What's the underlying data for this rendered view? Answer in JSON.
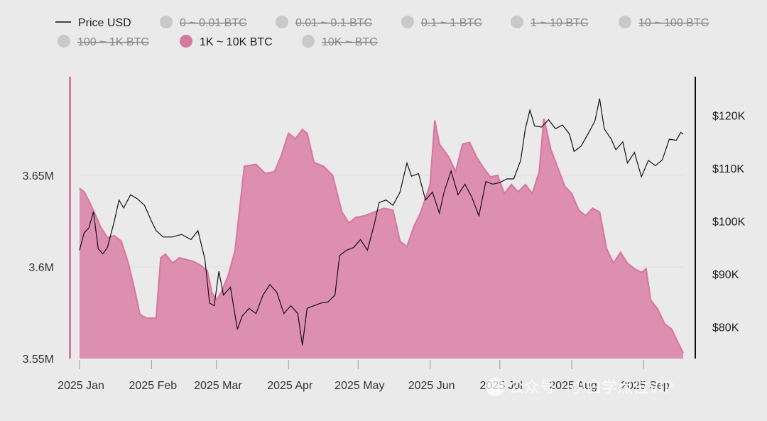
{
  "chart_data": {
    "type": "area",
    "legend": [
      {
        "label": "Price USD",
        "kind": "line",
        "active": true
      },
      {
        "label": "0 ~ 0.01 BTC",
        "kind": "dot",
        "active": false
      },
      {
        "label": "0.01 ~ 0.1 BTC",
        "kind": "dot",
        "active": false
      },
      {
        "label": "0.1 ~ 1 BTC",
        "kind": "dot",
        "active": false
      },
      {
        "label": "1 ~ 10 BTC",
        "kind": "dot",
        "active": false
      },
      {
        "label": "10 ~ 100 BTC",
        "kind": "dot",
        "active": false
      },
      {
        "label": "100 ~ 1K BTC",
        "kind": "dot",
        "active": false
      },
      {
        "label": "1K ~ 10K BTC",
        "kind": "dot",
        "active": true
      },
      {
        "label": "10K ~ BTC",
        "kind": "dot",
        "active": false
      }
    ],
    "x_ticks": [
      "2025 Jan",
      "2025 Feb",
      "2025 Mar",
      "2025 Apr",
      "2025 May",
      "2025 Jun",
      "2025 Jul",
      "2025 Aug",
      "2025 Sep"
    ],
    "x_tick_dates": [
      "2025-01-01",
      "2025-02-01",
      "2025-03-01",
      "2025-04-01",
      "2025-05-01",
      "2025-06-01",
      "2025-07-01",
      "2025-08-01",
      "2025-09-01"
    ],
    "y_left": {
      "ticks": [
        "3.55M",
        "3.6M",
        "3.65M"
      ],
      "tick_values": [
        3550000,
        3600000,
        3650000
      ],
      "range": [
        3550000,
        3700000
      ]
    },
    "y_right": {
      "ticks": [
        "$80K",
        "$90K",
        "$100K",
        "$110K",
        "$120K"
      ],
      "tick_values": [
        80000,
        90000,
        100000,
        110000,
        120000
      ],
      "range": [
        74000,
        126000
      ]
    },
    "series": [
      {
        "name": "1K ~ 10K BTC",
        "axis": "left",
        "color": "#d9789e",
        "points": [
          [
            "2025-01-01",
            3643000
          ],
          [
            "2025-01-03",
            3641000
          ],
          [
            "2025-01-05",
            3636000
          ],
          [
            "2025-01-08",
            3628000
          ],
          [
            "2025-01-10",
            3622000
          ],
          [
            "2025-01-13",
            3616000
          ],
          [
            "2025-01-16",
            3617000
          ],
          [
            "2025-01-19",
            3614000
          ],
          [
            "2025-01-22",
            3602000
          ],
          [
            "2025-01-25",
            3586000
          ],
          [
            "2025-01-27",
            3574000
          ],
          [
            "2025-01-30",
            3572000
          ],
          [
            "2025-02-03",
            3572000
          ],
          [
            "2025-02-05",
            3605000
          ],
          [
            "2025-02-07",
            3607000
          ],
          [
            "2025-02-10",
            3602000
          ],
          [
            "2025-02-13",
            3605000
          ],
          [
            "2025-02-16",
            3604000
          ],
          [
            "2025-02-19",
            3603000
          ],
          [
            "2025-02-22",
            3601000
          ],
          [
            "2025-02-25",
            3598000
          ],
          [
            "2025-02-27",
            3586000
          ],
          [
            "2025-03-01",
            3582000
          ],
          [
            "2025-03-03",
            3586000
          ],
          [
            "2025-03-06",
            3595000
          ],
          [
            "2025-03-09",
            3609000
          ],
          [
            "2025-03-13",
            3655000
          ],
          [
            "2025-03-18",
            3656000
          ],
          [
            "2025-03-22",
            3651000
          ],
          [
            "2025-03-26",
            3652000
          ],
          [
            "2025-03-29",
            3661000
          ],
          [
            "2025-04-01",
            3673000
          ],
          [
            "2025-04-04",
            3670000
          ],
          [
            "2025-04-07",
            3675000
          ],
          [
            "2025-04-09",
            3673000
          ],
          [
            "2025-04-12",
            3657000
          ],
          [
            "2025-04-16",
            3655000
          ],
          [
            "2025-04-20",
            3650000
          ],
          [
            "2025-04-24",
            3630000
          ],
          [
            "2025-04-27",
            3624000
          ],
          [
            "2025-04-30",
            3627000
          ],
          [
            "2025-05-04",
            3628000
          ],
          [
            "2025-05-08",
            3630000
          ],
          [
            "2025-05-12",
            3632000
          ],
          [
            "2025-05-16",
            3631000
          ],
          [
            "2025-05-19",
            3614000
          ],
          [
            "2025-05-22",
            3611000
          ],
          [
            "2025-05-25",
            3622000
          ],
          [
            "2025-05-28",
            3630000
          ],
          [
            "2025-06-01",
            3645000
          ],
          [
            "2025-06-03",
            3680000
          ],
          [
            "2025-06-05",
            3667000
          ],
          [
            "2025-06-09",
            3660000
          ],
          [
            "2025-06-12",
            3652000
          ],
          [
            "2025-06-15",
            3667000
          ],
          [
            "2025-06-18",
            3668000
          ],
          [
            "2025-06-21",
            3660000
          ],
          [
            "2025-06-24",
            3654000
          ],
          [
            "2025-06-27",
            3649000
          ],
          [
            "2025-06-30",
            3650000
          ],
          [
            "2025-07-03",
            3640000
          ],
          [
            "2025-07-06",
            3645000
          ],
          [
            "2025-07-09",
            3641000
          ],
          [
            "2025-07-12",
            3645000
          ],
          [
            "2025-07-15",
            3640000
          ],
          [
            "2025-07-18",
            3652000
          ],
          [
            "2025-07-20",
            3681000
          ],
          [
            "2025-07-23",
            3664000
          ],
          [
            "2025-07-26",
            3654000
          ],
          [
            "2025-07-29",
            3644000
          ],
          [
            "2025-08-01",
            3640000
          ],
          [
            "2025-08-04",
            3631000
          ],
          [
            "2025-08-07",
            3628000
          ],
          [
            "2025-08-10",
            3632000
          ],
          [
            "2025-08-13",
            3630000
          ],
          [
            "2025-08-16",
            3610000
          ],
          [
            "2025-08-19",
            3602000
          ],
          [
            "2025-08-22",
            3608000
          ],
          [
            "2025-08-25",
            3602000
          ],
          [
            "2025-08-28",
            3599000
          ],
          [
            "2025-08-31",
            3597000
          ],
          [
            "2025-09-02",
            3599000
          ],
          [
            "2025-09-04",
            3582000
          ],
          [
            "2025-09-07",
            3577000
          ],
          [
            "2025-09-10",
            3569000
          ],
          [
            "2025-09-13",
            3566000
          ],
          [
            "2025-09-16",
            3558000
          ],
          [
            "2025-09-18",
            3553000
          ]
        ]
      },
      {
        "name": "Price USD",
        "axis": "right",
        "color": "#111111",
        "points": [
          [
            "2025-01-01",
            94500
          ],
          [
            "2025-01-03",
            97800
          ],
          [
            "2025-01-05",
            98700
          ],
          [
            "2025-01-07",
            101800
          ],
          [
            "2025-01-09",
            94800
          ],
          [
            "2025-01-11",
            93800
          ],
          [
            "2025-01-13",
            95000
          ],
          [
            "2025-01-16",
            100000
          ],
          [
            "2025-01-18",
            104000
          ],
          [
            "2025-01-20",
            102500
          ],
          [
            "2025-01-23",
            105000
          ],
          [
            "2025-01-26",
            104200
          ],
          [
            "2025-01-29",
            103000
          ],
          [
            "2025-02-01",
            100000
          ],
          [
            "2025-02-03",
            98200
          ],
          [
            "2025-02-06",
            97000
          ],
          [
            "2025-02-10",
            97000
          ],
          [
            "2025-02-14",
            97500
          ],
          [
            "2025-02-18",
            96500
          ],
          [
            "2025-02-21",
            98200
          ],
          [
            "2025-02-24",
            92800
          ],
          [
            "2025-02-26",
            84500
          ],
          [
            "2025-02-28",
            84000
          ],
          [
            "2025-03-02",
            90500
          ],
          [
            "2025-03-04",
            86000
          ],
          [
            "2025-03-07",
            87500
          ],
          [
            "2025-03-10",
            79500
          ],
          [
            "2025-03-12",
            82000
          ],
          [
            "2025-03-15",
            83500
          ],
          [
            "2025-03-18",
            82500
          ],
          [
            "2025-03-21",
            86000
          ],
          [
            "2025-03-24",
            88000
          ],
          [
            "2025-03-27",
            86500
          ],
          [
            "2025-03-30",
            82500
          ],
          [
            "2025-04-02",
            84000
          ],
          [
            "2025-04-05",
            82500
          ],
          [
            "2025-04-07",
            76500
          ],
          [
            "2025-04-09",
            83500
          ],
          [
            "2025-04-12",
            84000
          ],
          [
            "2025-04-15",
            84500
          ],
          [
            "2025-04-18",
            84700
          ],
          [
            "2025-04-21",
            86000
          ],
          [
            "2025-04-23",
            93500
          ],
          [
            "2025-04-26",
            94500
          ],
          [
            "2025-04-29",
            95000
          ],
          [
            "2025-05-02",
            96500
          ],
          [
            "2025-05-05",
            94500
          ],
          [
            "2025-05-08",
            99500
          ],
          [
            "2025-05-10",
            103500
          ],
          [
            "2025-05-13",
            104000
          ],
          [
            "2025-05-16",
            103000
          ],
          [
            "2025-05-19",
            105500
          ],
          [
            "2025-05-22",
            111000
          ],
          [
            "2025-05-24",
            108500
          ],
          [
            "2025-05-27",
            109000
          ],
          [
            "2025-05-30",
            104000
          ],
          [
            "2025-06-02",
            105500
          ],
          [
            "2025-06-05",
            101500
          ],
          [
            "2025-06-07",
            105500
          ],
          [
            "2025-06-10",
            109500
          ],
          [
            "2025-06-13",
            105000
          ],
          [
            "2025-06-16",
            107000
          ],
          [
            "2025-06-19",
            104500
          ],
          [
            "2025-06-22",
            101000
          ],
          [
            "2025-06-25",
            107500
          ],
          [
            "2025-06-28",
            107000
          ],
          [
            "2025-07-01",
            107300
          ],
          [
            "2025-07-04",
            108000
          ],
          [
            "2025-07-07",
            108000
          ],
          [
            "2025-07-10",
            111500
          ],
          [
            "2025-07-12",
            117500
          ],
          [
            "2025-07-14",
            121000
          ],
          [
            "2025-07-16",
            118000
          ],
          [
            "2025-07-19",
            117800
          ],
          [
            "2025-07-22",
            119200
          ],
          [
            "2025-07-25",
            117500
          ],
          [
            "2025-07-28",
            118200
          ],
          [
            "2025-07-31",
            116500
          ],
          [
            "2025-08-02",
            113200
          ],
          [
            "2025-08-05",
            114200
          ],
          [
            "2025-08-08",
            116500
          ],
          [
            "2025-08-11",
            119000
          ],
          [
            "2025-08-13",
            123200
          ],
          [
            "2025-08-15",
            117500
          ],
          [
            "2025-08-18",
            115500
          ],
          [
            "2025-08-20",
            113500
          ],
          [
            "2025-08-23",
            115000
          ],
          [
            "2025-08-25",
            111000
          ],
          [
            "2025-08-28",
            113000
          ],
          [
            "2025-08-31",
            108400
          ],
          [
            "2025-09-03",
            111500
          ],
          [
            "2025-09-06",
            110500
          ],
          [
            "2025-09-09",
            111600
          ],
          [
            "2025-09-12",
            115500
          ],
          [
            "2025-09-15",
            115300
          ],
          [
            "2025-09-17",
            116800
          ],
          [
            "2025-09-18",
            116500
          ]
        ]
      }
    ],
    "grid": true
  },
  "watermark": "公众号 · 小白学点位VIP",
  "colors": {
    "background": "#eaeaea",
    "area_fill": "#dd8fb0",
    "area_line": "#d9789e",
    "price_line": "#111111",
    "inactive_dot": "#c9c9c9"
  }
}
